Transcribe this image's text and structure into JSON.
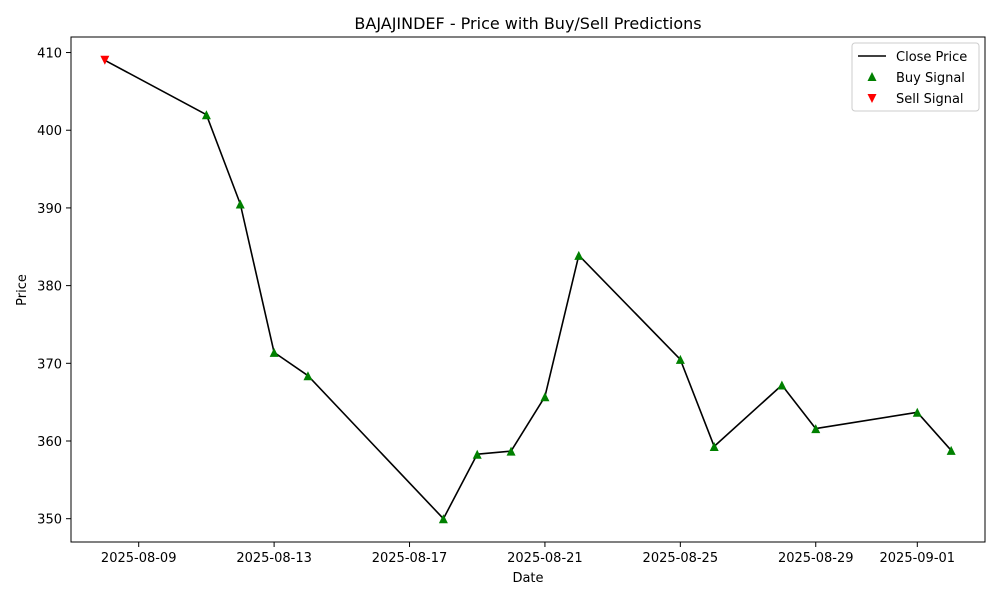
{
  "chart_data": {
    "type": "line",
    "title": "BAJAJINDEF - Price with Buy/Sell Predictions",
    "xlabel": "Date",
    "ylabel": "Price",
    "x_type": "date",
    "xlim": [
      "2025-08-07",
      "2025-09-03"
    ],
    "ylim": [
      347,
      412
    ],
    "x_ticks": [
      "2025-08-09",
      "2025-08-13",
      "2025-08-17",
      "2025-08-21",
      "2025-08-25",
      "2025-08-29",
      "2025-09-01"
    ],
    "y_ticks": [
      350,
      360,
      370,
      380,
      390,
      400,
      410
    ],
    "grid": false,
    "legend_position": "top-right",
    "series": [
      {
        "name": "Close Price",
        "type": "line",
        "color": "#000000",
        "points": [
          {
            "x": "2025-08-08",
            "y": 409.0
          },
          {
            "x": "2025-08-11",
            "y": 402.0
          },
          {
            "x": "2025-08-12",
            "y": 390.5
          },
          {
            "x": "2025-08-13",
            "y": 371.4
          },
          {
            "x": "2025-08-14",
            "y": 368.4
          },
          {
            "x": "2025-08-18",
            "y": 350.0
          },
          {
            "x": "2025-08-19",
            "y": 358.3
          },
          {
            "x": "2025-08-20",
            "y": 358.7
          },
          {
            "x": "2025-08-21",
            "y": 365.7
          },
          {
            "x": "2025-08-22",
            "y": 383.9
          },
          {
            "x": "2025-08-25",
            "y": 370.5
          },
          {
            "x": "2025-08-26",
            "y": 359.3
          },
          {
            "x": "2025-08-28",
            "y": 367.2
          },
          {
            "x": "2025-08-29",
            "y": 361.6
          },
          {
            "x": "2025-09-01",
            "y": 363.7
          },
          {
            "x": "2025-09-02",
            "y": 358.8
          }
        ]
      },
      {
        "name": "Buy Signal",
        "type": "scatter",
        "marker": "triangle-up",
        "color": "#008000",
        "points": [
          {
            "x": "2025-08-11",
            "y": 402.0
          },
          {
            "x": "2025-08-12",
            "y": 390.5
          },
          {
            "x": "2025-08-13",
            "y": 371.4
          },
          {
            "x": "2025-08-14",
            "y": 368.4
          },
          {
            "x": "2025-08-18",
            "y": 350.0
          },
          {
            "x": "2025-08-19",
            "y": 358.3
          },
          {
            "x": "2025-08-20",
            "y": 358.7
          },
          {
            "x": "2025-08-21",
            "y": 365.7
          },
          {
            "x": "2025-08-22",
            "y": 383.9
          },
          {
            "x": "2025-08-25",
            "y": 370.5
          },
          {
            "x": "2025-08-26",
            "y": 359.3
          },
          {
            "x": "2025-08-28",
            "y": 367.2
          },
          {
            "x": "2025-08-29",
            "y": 361.6
          },
          {
            "x": "2025-09-01",
            "y": 363.7
          },
          {
            "x": "2025-09-02",
            "y": 358.8
          }
        ]
      },
      {
        "name": "Sell Signal",
        "type": "scatter",
        "marker": "triangle-down",
        "color": "#ff0000",
        "points": [
          {
            "x": "2025-08-08",
            "y": 409.0
          }
        ]
      }
    ]
  }
}
